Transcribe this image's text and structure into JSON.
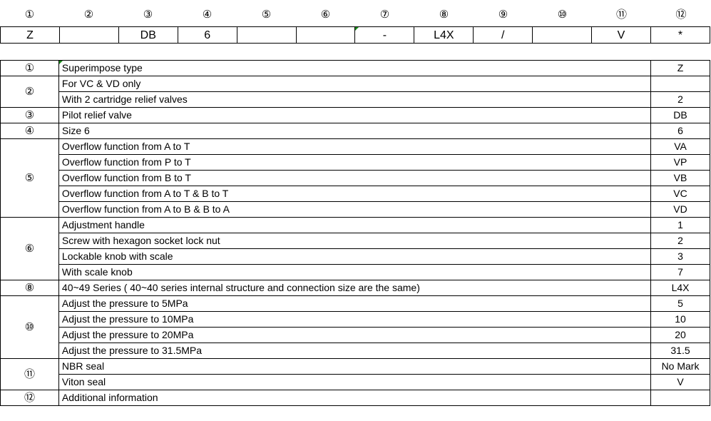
{
  "positions": [
    "①",
    "②",
    "③",
    "④",
    "⑤",
    "⑥",
    "⑦",
    "⑧",
    "⑨",
    "⑩",
    "⑪",
    "⑫"
  ],
  "code": [
    "Z",
    "",
    "DB",
    "6",
    "",
    "",
    "-",
    "L4X",
    "/",
    "",
    "V",
    "*"
  ],
  "groups": [
    {
      "num": "①",
      "rows": [
        {
          "desc": "Superimpose type",
          "val": "Z"
        }
      ]
    },
    {
      "num": "②",
      "rows": [
        {
          "desc": "For VC & VD only",
          "val": ""
        },
        {
          "desc": "With 2 cartridge relief valves",
          "val": "2"
        }
      ]
    },
    {
      "num": "③",
      "rows": [
        {
          "desc": "Pilot relief valve",
          "val": "DB"
        }
      ]
    },
    {
      "num": "④",
      "rows": [
        {
          "desc": "Size 6",
          "val": "6"
        }
      ]
    },
    {
      "num": "⑤",
      "rows": [
        {
          "desc": "Overflow function from A to T",
          "val": "VA"
        },
        {
          "desc": "Overflow function from P to T",
          "val": "VP"
        },
        {
          "desc": "Overflow function from B to T",
          "val": "VB"
        },
        {
          "desc": "Overflow function from A to T & B to T",
          "val": "VC"
        },
        {
          "desc": "Overflow function from A to B & B to A",
          "val": "VD"
        }
      ]
    },
    {
      "num": "⑥",
      "rows": [
        {
          "desc": "Adjustment handle",
          "val": "1"
        },
        {
          "desc": "Screw with hexagon socket lock nut",
          "val": "2"
        },
        {
          "desc": "Lockable knob with scale",
          "val": "3"
        },
        {
          "desc": "With scale knob",
          "val": "7"
        }
      ]
    },
    {
      "num": "⑧",
      "rows": [
        {
          "desc": "40~49 Series ( 40~40 series internal structure and connection size are the same)",
          "val": "L4X"
        }
      ]
    },
    {
      "num": "⑩",
      "rows": [
        {
          "desc": "Adjust the pressure to 5MPa",
          "val": "5"
        },
        {
          "desc": "Adjust the pressure to 10MPa",
          "val": "10"
        },
        {
          "desc": "Adjust the pressure to 20MPa",
          "val": "20"
        },
        {
          "desc": "Adjust the pressure to 31.5MPa",
          "val": "31.5"
        }
      ]
    },
    {
      "num": "⑪",
      "rows": [
        {
          "desc": "NBR seal",
          "val": "No Mark"
        },
        {
          "desc": "Viton seal",
          "val": "V"
        }
      ]
    },
    {
      "num": "⑫",
      "rows": [
        {
          "desc": "Additional information",
          "val": ""
        }
      ]
    }
  ],
  "colors": {
    "comment_marker": "#1a8a1a"
  }
}
